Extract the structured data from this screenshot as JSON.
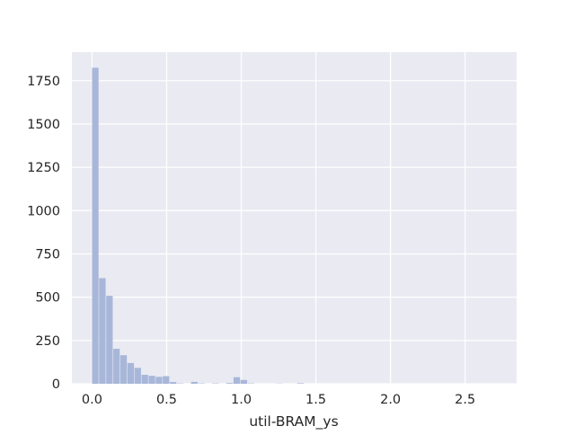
{
  "chart_data": {
    "type": "bar",
    "subtype": "histogram",
    "title": "",
    "xlabel": "util-BRAM_ys",
    "ylabel": "",
    "xlim": [
      -0.135,
      2.845
    ],
    "ylim": [
      0,
      1915
    ],
    "grid": true,
    "legend": false,
    "x_ticks": [
      0.0,
      0.5,
      1.0,
      1.5,
      2.0,
      2.5
    ],
    "x_tick_labels": [
      "0.0",
      "0.5",
      "1.0",
      "1.5",
      "2.0",
      "2.5"
    ],
    "y_ticks": [
      0,
      250,
      500,
      750,
      1000,
      1250,
      1500,
      1750
    ],
    "y_tick_labels": [
      "0",
      "250",
      "500",
      "750",
      "1000",
      "1250",
      "1500",
      "1750"
    ],
    "bin_start": 0.0,
    "bin_width": 0.0474,
    "values": [
      1825,
      610,
      508,
      202,
      165,
      120,
      92,
      52,
      46,
      40,
      44,
      10,
      2,
      0,
      11,
      2,
      0,
      2,
      0,
      4,
      38,
      22,
      2,
      0,
      0,
      0,
      1,
      0,
      0,
      3,
      0,
      0,
      0,
      0,
      0,
      0,
      0,
      0,
      0,
      0,
      0,
      0,
      0,
      0,
      0,
      0,
      0,
      0,
      0,
      0,
      0,
      0,
      0,
      0,
      0,
      0,
      0
    ],
    "colors": {
      "background": "#EAEAF2",
      "grid": "#FFFFFF",
      "bar": "#A8B7D9"
    }
  }
}
